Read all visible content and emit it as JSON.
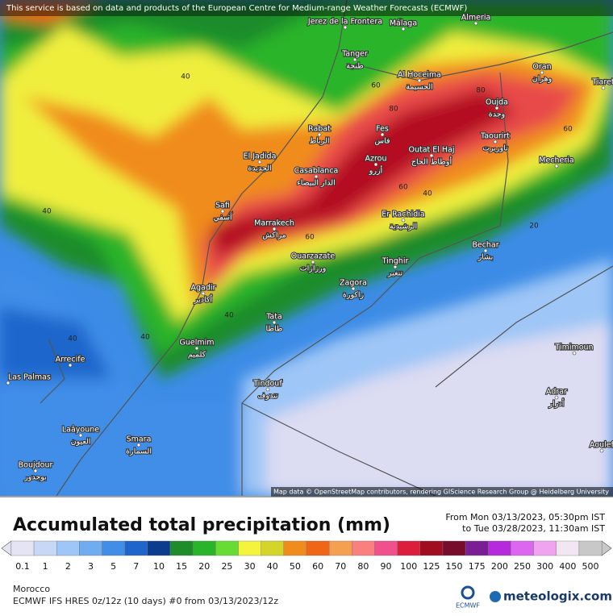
{
  "header": {
    "notice": "This service is based on data and products of the European Centre for Medium-range Weather Forecasts (ECMWF)"
  },
  "map": {
    "cities": [
      {
        "name": "Jerez de la Frontera"
      },
      {
        "name": "Málaga"
      },
      {
        "name": "Almeria"
      },
      {
        "name": "Tanger",
        "local": "طنجة"
      },
      {
        "name": "Al Hoceima",
        "local": "الحسيمة"
      },
      {
        "name": "Oran",
        "local": "وهران"
      },
      {
        "name": "Tiaret"
      },
      {
        "name": "Oujda",
        "local": "وجدة"
      },
      {
        "name": "Rabat",
        "local": "الرباط"
      },
      {
        "name": "Fes",
        "local": "فاس"
      },
      {
        "name": "Taourirt",
        "local": "تاوريرت"
      },
      {
        "name": "El Jadida",
        "local": "الجديدة"
      },
      {
        "name": "Casablanca",
        "local": "الدار البيضاء"
      },
      {
        "name": "Azrou",
        "local": "أزرو"
      },
      {
        "name": "Outat El Haj",
        "local": "أوطاط الحاج"
      },
      {
        "name": "Mecheria"
      },
      {
        "name": "Safi",
        "local": "آسفي"
      },
      {
        "name": "Marrakech",
        "local": "مراكش"
      },
      {
        "name": "Er Rachidia",
        "local": "الرشيدية"
      },
      {
        "name": "Bechar",
        "local": "بشار"
      },
      {
        "name": "Ouarzazate",
        "local": "ورزازات"
      },
      {
        "name": "Tinghir",
        "local": "تنغير"
      },
      {
        "name": "Agadir",
        "local": "أكادير"
      },
      {
        "name": "Zagora",
        "local": "زاكورة"
      },
      {
        "name": "Tata",
        "local": "طاطا"
      },
      {
        "name": "Guelmim",
        "local": "كلميم"
      },
      {
        "name": "Arrecife"
      },
      {
        "name": "Timimoun"
      },
      {
        "name": "Tindouf",
        "local": "تندوف"
      },
      {
        "name": "Adrar",
        "local": "أدرار"
      },
      {
        "name": "Laâyoune",
        "local": "العيون"
      },
      {
        "name": "Smara",
        "local": "السمارة"
      },
      {
        "name": "Boujdour",
        "local": "بوجدور"
      },
      {
        "name": "Aoulef"
      },
      {
        "name": "Las Palmas"
      }
    ],
    "contour_labels": [
      40,
      40,
      40,
      60,
      80,
      80,
      60,
      40,
      60,
      60,
      40,
      40,
      20
    ],
    "attribution": "Map data © OpenStreetMap contributors, rendering GIScience Research Group @ Heidelberg University"
  },
  "legend": {
    "title": "Accumulated total precipitation (mm)",
    "from": "From Mon 03/13/2023, 05:30pm IST",
    "to": "to Tue 03/28/2023, 11:30am IST",
    "levels": [
      {
        "value": 0.1,
        "color": "#e4e4f4"
      },
      {
        "value": 1,
        "color": "#c6d8f6"
      },
      {
        "value": 2,
        "color": "#9ec6f6"
      },
      {
        "value": 3,
        "color": "#70acf0"
      },
      {
        "value": 5,
        "color": "#408ee8"
      },
      {
        "value": 7,
        "color": "#1e66cc"
      },
      {
        "value": 10,
        "color": "#0c3c8e"
      },
      {
        "value": 15,
        "color": "#1e8c2a"
      },
      {
        "value": 20,
        "color": "#2ab42a"
      },
      {
        "value": 25,
        "color": "#66dc34"
      },
      {
        "value": 30,
        "color": "#f4f43c"
      },
      {
        "value": 40,
        "color": "#d4d42a"
      },
      {
        "value": 50,
        "color": "#f08c1e"
      },
      {
        "value": 60,
        "color": "#f06616"
      },
      {
        "value": 70,
        "color": "#f5a050"
      },
      {
        "value": 80,
        "color": "#fa8080"
      },
      {
        "value": 90,
        "color": "#f0508c"
      },
      {
        "value": 100,
        "color": "#dc1e3c"
      },
      {
        "value": 125,
        "color": "#a00c20"
      },
      {
        "value": 150,
        "color": "#780c2c"
      },
      {
        "value": 175,
        "color": "#7a1e96"
      },
      {
        "value": 200,
        "color": "#b42adc"
      },
      {
        "value": 250,
        "color": "#dc66f0"
      },
      {
        "value": 300,
        "color": "#f0a4f0"
      },
      {
        "value": 400,
        "color": "#f2e6f2"
      },
      {
        "value": 500,
        "color": "#c8c8c8"
      }
    ]
  },
  "footer": {
    "region": "Morocco",
    "model": "ECMWF IFS HRES 0z/12z (10 days) #0 from 03/13/2023/12z",
    "logo_left": "ECMWF",
    "logo_right": "meteologix.com"
  }
}
